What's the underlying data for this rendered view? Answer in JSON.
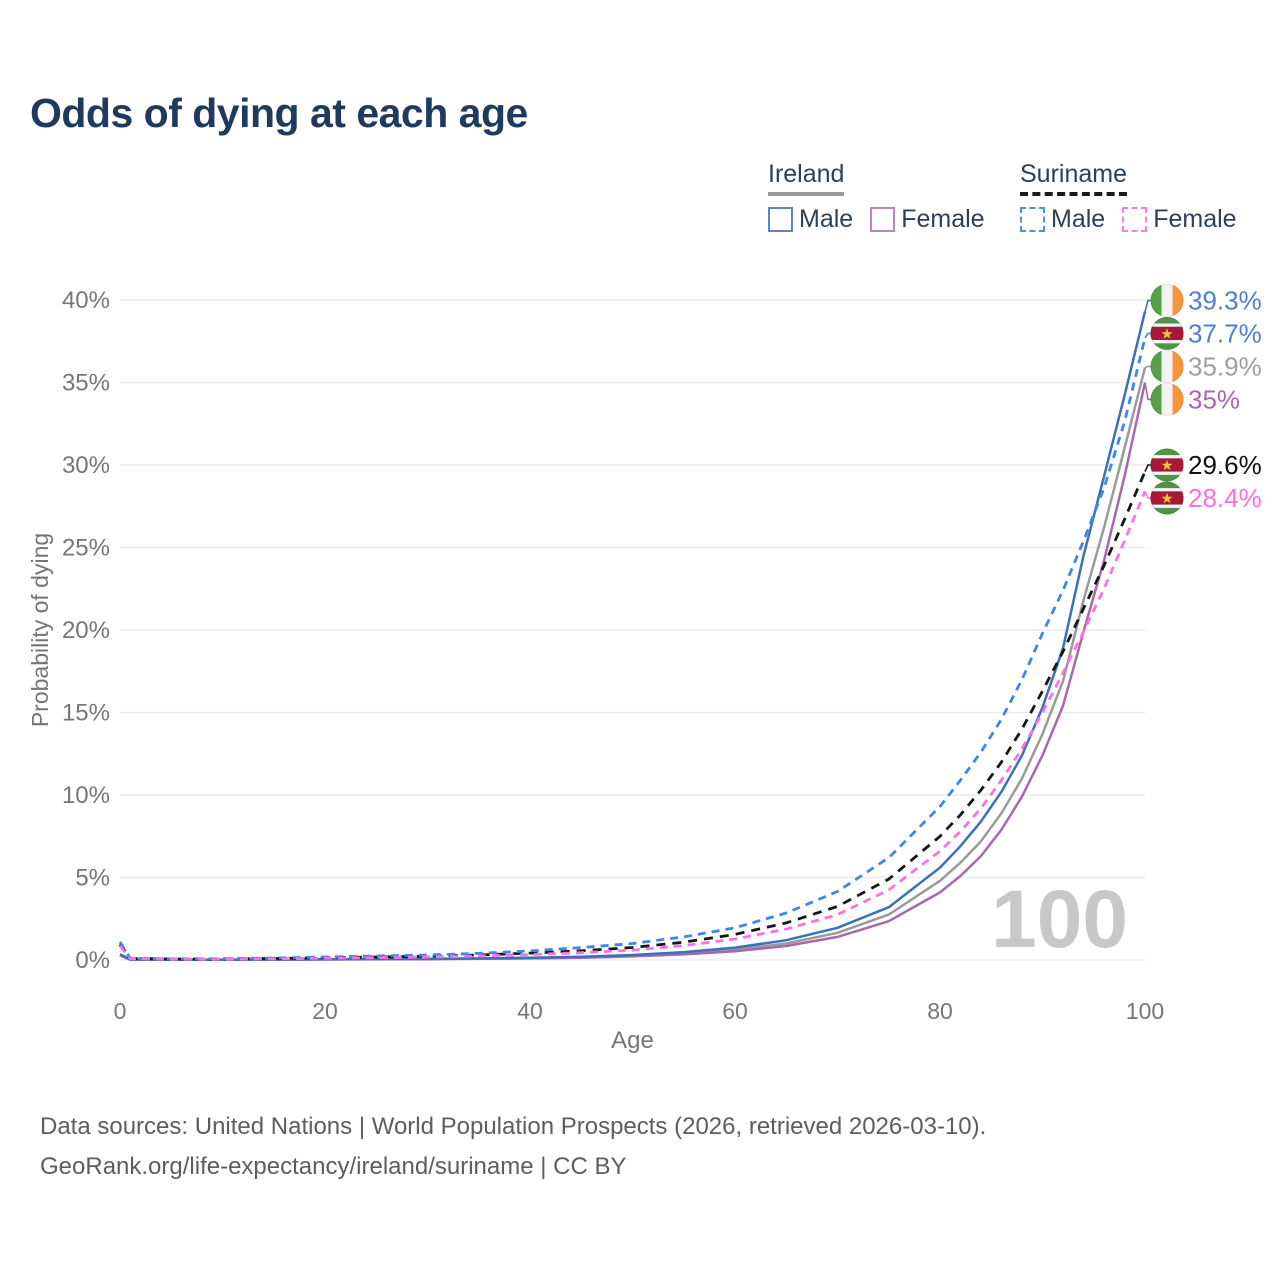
{
  "title": "Odds of dying at each age",
  "colors": {
    "title_text": "#1e3a5f",
    "legend_text": "#2e4057",
    "axis_text": "#767676",
    "gridline": "#ebebeb",
    "watermark": "#c8c8c8",
    "footer_text": "#5d5d5d"
  },
  "legend": {
    "groups": [
      {
        "id": "ireland",
        "label": "Ireland",
        "line_style": "solid",
        "underline_color": "#9a9a9a",
        "items": [
          {
            "id": "ireland-male",
            "label": "Male",
            "color": "#5b84c4",
            "box_style": "solid"
          },
          {
            "id": "ireland-female",
            "label": "Female",
            "color": "#bd84c2",
            "box_style": "solid"
          }
        ]
      },
      {
        "id": "suriname",
        "label": "Suriname",
        "line_style": "dashed",
        "underline_color": "#1a1a1a",
        "items": [
          {
            "id": "suriname-male",
            "label": "Male",
            "color": "#4a90f2",
            "box_style": "dashed"
          },
          {
            "id": "suriname-female",
            "label": "Female",
            "color": "#ff7ae6",
            "box_style": "dashed"
          }
        ]
      }
    ]
  },
  "chart_data": {
    "type": "line",
    "title": "Odds of dying at each age",
    "xlabel": "Age",
    "ylabel": "Probability of dying",
    "xlim": [
      0,
      100
    ],
    "ylim": [
      0,
      40
    ],
    "x_ticks": [
      0,
      20,
      40,
      60,
      80,
      100
    ],
    "y_ticks": [
      {
        "value": 0,
        "label": "0%"
      },
      {
        "value": 5,
        "label": "5%"
      },
      {
        "value": 10,
        "label": "10%"
      },
      {
        "value": 15,
        "label": "15%"
      },
      {
        "value": 20,
        "label": "20%"
      },
      {
        "value": 25,
        "label": "25%"
      },
      {
        "value": 30,
        "label": "30%"
      },
      {
        "value": 35,
        "label": "35%"
      },
      {
        "value": 40,
        "label": "40%"
      }
    ],
    "grid": "horizontal",
    "legend_position": "top-right",
    "age_marker": "100",
    "series": [
      {
        "id": "ireland-both",
        "name": "Ireland",
        "country": "Ireland",
        "sex": "both",
        "style": "solid",
        "color": "#9a9a9a",
        "label_color": "#9e9e9e",
        "flag": "ireland",
        "end_label": "35.9%",
        "end_value": 35.9,
        "points": [
          [
            0,
            0.3
          ],
          [
            1,
            0.025
          ],
          [
            5,
            0.015
          ],
          [
            10,
            0.015
          ],
          [
            15,
            0.025
          ],
          [
            20,
            0.04
          ],
          [
            25,
            0.05
          ],
          [
            30,
            0.065
          ],
          [
            35,
            0.085
          ],
          [
            40,
            0.12
          ],
          [
            45,
            0.17
          ],
          [
            50,
            0.26
          ],
          [
            55,
            0.4
          ],
          [
            60,
            0.63
          ],
          [
            65,
            1.0
          ],
          [
            70,
            1.65
          ],
          [
            75,
            2.75
          ],
          [
            80,
            4.8
          ],
          [
            82,
            5.9
          ],
          [
            84,
            7.2
          ],
          [
            86,
            8.9
          ],
          [
            88,
            11.0
          ],
          [
            90,
            13.7
          ],
          [
            92,
            16.9
          ],
          [
            94,
            21.8
          ],
          [
            96,
            26.2
          ],
          [
            98,
            31.0
          ],
          [
            100,
            35.9
          ]
        ]
      },
      {
        "id": "ireland-female",
        "name": "Ireland Female",
        "country": "Ireland",
        "sex": "female",
        "style": "solid",
        "color": "#a868ac",
        "label_color": "#ad63b8",
        "flag": "ireland",
        "end_label": "35%",
        "end_value": 35,
        "points": [
          [
            0,
            0.27
          ],
          [
            1,
            0.02
          ],
          [
            5,
            0.012
          ],
          [
            10,
            0.012
          ],
          [
            15,
            0.02
          ],
          [
            20,
            0.03
          ],
          [
            25,
            0.04
          ],
          [
            30,
            0.05
          ],
          [
            35,
            0.07
          ],
          [
            40,
            0.1
          ],
          [
            45,
            0.14
          ],
          [
            50,
            0.22
          ],
          [
            55,
            0.34
          ],
          [
            60,
            0.53
          ],
          [
            65,
            0.85
          ],
          [
            70,
            1.4
          ],
          [
            75,
            2.35
          ],
          [
            80,
            4.1
          ],
          [
            82,
            5.1
          ],
          [
            84,
            6.3
          ],
          [
            86,
            7.9
          ],
          [
            88,
            9.9
          ],
          [
            90,
            12.4
          ],
          [
            92,
            15.4
          ],
          [
            94,
            19.9
          ],
          [
            96,
            24.2
          ],
          [
            98,
            29.3
          ],
          [
            100,
            35.0
          ]
        ]
      },
      {
        "id": "ireland-male",
        "name": "Ireland Male",
        "country": "Ireland",
        "sex": "male",
        "style": "solid",
        "color": "#3a71ba",
        "label_color": "#4c7fd2",
        "flag": "ireland",
        "end_label": "39.3%",
        "end_value": 39.3,
        "points": [
          [
            0,
            0.35
          ],
          [
            1,
            0.03
          ],
          [
            5,
            0.02
          ],
          [
            10,
            0.02
          ],
          [
            15,
            0.03
          ],
          [
            20,
            0.05
          ],
          [
            25,
            0.06
          ],
          [
            30,
            0.08
          ],
          [
            35,
            0.1
          ],
          [
            40,
            0.14
          ],
          [
            45,
            0.2
          ],
          [
            50,
            0.3
          ],
          [
            55,
            0.48
          ],
          [
            60,
            0.75
          ],
          [
            65,
            1.2
          ],
          [
            70,
            1.95
          ],
          [
            75,
            3.2
          ],
          [
            80,
            5.6
          ],
          [
            82,
            6.9
          ],
          [
            84,
            8.4
          ],
          [
            86,
            10.2
          ],
          [
            88,
            12.4
          ],
          [
            90,
            15.3
          ],
          [
            92,
            18.9
          ],
          [
            94,
            24.5
          ],
          [
            96,
            29.3
          ],
          [
            98,
            34.2
          ],
          [
            100,
            39.3
          ]
        ]
      },
      {
        "id": "suriname-both",
        "name": "Suriname",
        "country": "Suriname",
        "sex": "both",
        "style": "dashed",
        "color": "#161616",
        "label_color": "#111111",
        "flag": "suriname",
        "end_label": "29.6%",
        "end_value": 29.6,
        "points": [
          [
            0,
            0.95
          ],
          [
            1,
            0.09
          ],
          [
            5,
            0.06
          ],
          [
            10,
            0.06
          ],
          [
            15,
            0.09
          ],
          [
            20,
            0.14
          ],
          [
            25,
            0.18
          ],
          [
            30,
            0.23
          ],
          [
            35,
            0.3
          ],
          [
            40,
            0.42
          ],
          [
            45,
            0.56
          ],
          [
            50,
            0.76
          ],
          [
            55,
            1.08
          ],
          [
            60,
            1.55
          ],
          [
            65,
            2.25
          ],
          [
            70,
            3.25
          ],
          [
            75,
            4.9
          ],
          [
            80,
            7.5
          ],
          [
            82,
            8.8
          ],
          [
            84,
            10.3
          ],
          [
            86,
            12.0
          ],
          [
            88,
            14.0
          ],
          [
            90,
            16.3
          ],
          [
            92,
            18.7
          ],
          [
            94,
            21.3
          ],
          [
            96,
            23.9
          ],
          [
            98,
            26.7
          ],
          [
            100,
            29.6
          ]
        ]
      },
      {
        "id": "suriname-male",
        "name": "Suriname Male",
        "country": "Suriname",
        "sex": "male",
        "style": "dashed",
        "color": "#3d87ea",
        "label_color": "#4c7fd2",
        "flag": "suriname",
        "end_label": "37.7%",
        "end_value": 37.7,
        "points": [
          [
            0,
            1.1
          ],
          [
            1,
            0.1
          ],
          [
            5,
            0.07
          ],
          [
            10,
            0.08
          ],
          [
            15,
            0.12
          ],
          [
            20,
            0.18
          ],
          [
            25,
            0.24
          ],
          [
            30,
            0.3
          ],
          [
            35,
            0.4
          ],
          [
            40,
            0.55
          ],
          [
            45,
            0.75
          ],
          [
            50,
            1.0
          ],
          [
            55,
            1.4
          ],
          [
            60,
            1.95
          ],
          [
            65,
            2.85
          ],
          [
            70,
            4.15
          ],
          [
            75,
            6.2
          ],
          [
            80,
            9.3
          ],
          [
            82,
            10.9
          ],
          [
            84,
            12.6
          ],
          [
            86,
            14.6
          ],
          [
            88,
            17.0
          ],
          [
            90,
            19.8
          ],
          [
            92,
            22.4
          ],
          [
            94,
            25.4
          ],
          [
            96,
            28.6
          ],
          [
            98,
            32.6
          ],
          [
            100,
            37.7
          ]
        ]
      },
      {
        "id": "suriname-female",
        "name": "Suriname Female",
        "country": "Suriname",
        "sex": "female",
        "style": "dashed",
        "color": "#ff70e0",
        "label_color": "#ff6ee0",
        "flag": "suriname",
        "end_label": "28.4%",
        "end_value": 28.4,
        "points": [
          [
            0,
            0.85
          ],
          [
            1,
            0.08
          ],
          [
            5,
            0.05
          ],
          [
            10,
            0.05
          ],
          [
            15,
            0.07
          ],
          [
            20,
            0.11
          ],
          [
            25,
            0.14
          ],
          [
            30,
            0.18
          ],
          [
            35,
            0.24
          ],
          [
            40,
            0.33
          ],
          [
            45,
            0.44
          ],
          [
            50,
            0.6
          ],
          [
            55,
            0.87
          ],
          [
            60,
            1.27
          ],
          [
            65,
            1.87
          ],
          [
            70,
            2.75
          ],
          [
            75,
            4.25
          ],
          [
            80,
            6.6
          ],
          [
            82,
            7.8
          ],
          [
            84,
            9.2
          ],
          [
            86,
            10.9
          ],
          [
            88,
            12.8
          ],
          [
            90,
            15.0
          ],
          [
            92,
            17.4
          ],
          [
            94,
            19.9
          ],
          [
            96,
            22.5
          ],
          [
            98,
            25.4
          ],
          [
            100,
            28.4
          ]
        ]
      }
    ],
    "flag_colors": {
      "ireland": {
        "green": "#55a245",
        "white": "#f4f4f4",
        "orange": "#f7953b"
      },
      "suriname": {
        "green": "#4e9545",
        "white": "#f4f4f4",
        "red": "#a81838",
        "star": "#eec82e"
      }
    }
  },
  "footer": {
    "line1": "Data sources: United Nations | World Population Prospects (2026, retrieved 2026-03-10).",
    "line2": "GeoRank.org/life-expectancy/ireland/suriname | CC BY"
  }
}
